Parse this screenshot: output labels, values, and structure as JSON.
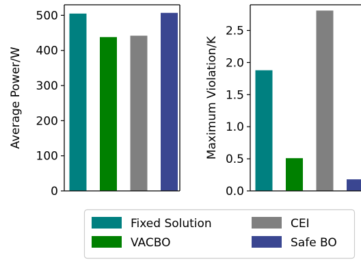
{
  "chart_data": [
    {
      "type": "bar",
      "ylabel": "Average Power/W",
      "ylim": [
        0,
        530
      ],
      "yticks": [
        0,
        100,
        200,
        300,
        400,
        500
      ],
      "ytick_labels": [
        "0",
        "100",
        "200",
        "300",
        "400",
        "500"
      ],
      "categories": [
        "Fixed Solution",
        "VACBO",
        "CEI",
        "Safe BO"
      ],
      "values": [
        505,
        438,
        442,
        507
      ],
      "colors": [
        "#008080",
        "#008000",
        "#808080",
        "#3a4691"
      ]
    },
    {
      "type": "bar",
      "ylabel": "Maximum Violation/K",
      "ylim": [
        0,
        2.9
      ],
      "yticks": [
        0,
        0.5,
        1.0,
        1.5,
        2.0,
        2.5
      ],
      "ytick_labels": [
        "0.0",
        "0.5",
        "1.0",
        "1.5",
        "2.0",
        "2.5"
      ],
      "categories": [
        "Fixed Solution",
        "VACBO",
        "CEI",
        "Safe BO"
      ],
      "values": [
        1.88,
        0.51,
        2.81,
        0.18
      ],
      "colors": [
        "#008080",
        "#008000",
        "#808080",
        "#3a4691"
      ]
    }
  ],
  "legend": {
    "placement": "bottom",
    "entries": [
      {
        "label": "Fixed Solution",
        "color": "#008080"
      },
      {
        "label": "CEI",
        "color": "#808080"
      },
      {
        "label": "VACBO",
        "color": "#008000"
      },
      {
        "label": "Safe BO",
        "color": "#3a4691"
      }
    ]
  }
}
